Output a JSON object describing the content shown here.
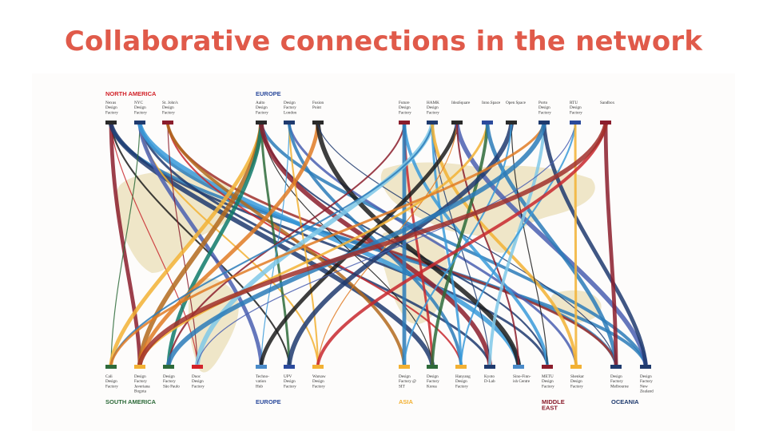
{
  "slide": {
    "title": "Collaborative connections in the network"
  },
  "colors": {
    "title": "#e05a4a",
    "map": "#efe6c8",
    "north_america": "#d2232a",
    "europe": "#2b4a9c",
    "asia": "#f2b134",
    "middle_east": "#8b1d2c",
    "oceania": "#1f3a6e",
    "south_america": "#2e6b3a"
  },
  "diagram": {
    "regions_top": [
      {
        "label": "NORTH AMERICA",
        "color": "#d2232a"
      },
      {
        "label": "EUROPE",
        "color": "#2b4a9c"
      }
    ],
    "regions_bottom": [
      {
        "label": "SOUTH AMERICA",
        "color": "#2e6b3a"
      },
      {
        "label": "EUROPE",
        "color": "#2b4a9c"
      },
      {
        "label": "ASIA",
        "color": "#f2b134"
      },
      {
        "label": "MIDDLE\nEAST",
        "color": "#8b1d2c"
      },
      {
        "label": "OCEANIA",
        "color": "#1f3a6e"
      }
    ],
    "top_nodes": [
      {
        "label": "Nexus\nDesign\nFactory",
        "color": "#2a2a2a"
      },
      {
        "label": "NYC\nDesign\nFactory",
        "color": "#1f3a6e"
      },
      {
        "label": "St. John's\nDesign\nFactory",
        "color": "#8b1d2c"
      },
      {
        "label": "Aalto\nDesign\nFactory",
        "color": "#2a2a2a"
      },
      {
        "label": "Design\nFactory\nLondon",
        "color": "#1f3a6e"
      },
      {
        "label": "Fusion\nPoint",
        "color": "#2a2a2a"
      },
      {
        "label": "Future\nDesign\nFactory",
        "color": "#8b1d2c"
      },
      {
        "label": "HAMK\nDesign\nFactory",
        "color": "#1f3a6e"
      },
      {
        "label": "IdeaSquare",
        "color": "#2a2a2a"
      },
      {
        "label": "Inno.Space",
        "color": "#2b4a9c"
      },
      {
        "label": "Open Space",
        "color": "#2a2a2a"
      },
      {
        "label": "Porto\nDesign\nFactory",
        "color": "#1f3a6e"
      },
      {
        "label": "RTU\nDesign\nFactory",
        "color": "#2b4a9c"
      },
      {
        "label": "Sandbox",
        "color": "#8b1d2c"
      }
    ],
    "bottom_nodes": [
      {
        "label": "Cali\nDesign\nFactory",
        "color": "#2e6b3a"
      },
      {
        "label": "Design\nFactory\nJaveriana\nBogota",
        "color": "#f2b134"
      },
      {
        "label": "Design\nFactory\nSão Paulo",
        "color": "#2e6b3a"
      },
      {
        "label": "Duoc\nDesign\nFactory",
        "color": "#d2232a"
      },
      {
        "label": "Techno-\nvation\nHub",
        "color": "#4a8bc9"
      },
      {
        "label": "UPV\nDesign\nFactory",
        "color": "#2b4a9c"
      },
      {
        "label": "Warsaw\nDesign\nFactory",
        "color": "#f2b134"
      },
      {
        "label": "Design\nFactory @\nSIT",
        "color": "#f2b134"
      },
      {
        "label": "Design\nFactory\nKorea",
        "color": "#2e6b3a"
      },
      {
        "label": "Hanyang\nDesign\nFactory",
        "color": "#f2b134"
      },
      {
        "label": "Kyoto\nD-Lab",
        "color": "#1f3a6e"
      },
      {
        "label": "Sino-Finn-\nish Centre",
        "color": "#4a8bc9"
      },
      {
        "label": "METU\nDesign\nFactory",
        "color": "#8b1d2c"
      },
      {
        "label": "Shenkar\nDesign\nFactory",
        "color": "#f2b134"
      },
      {
        "label": "Design\nFactory\nMelbourne",
        "color": "#1f3a6e"
      },
      {
        "label": "Design\nFactory\nNew\nZealand",
        "color": "#1f3a6e"
      }
    ]
  }
}
